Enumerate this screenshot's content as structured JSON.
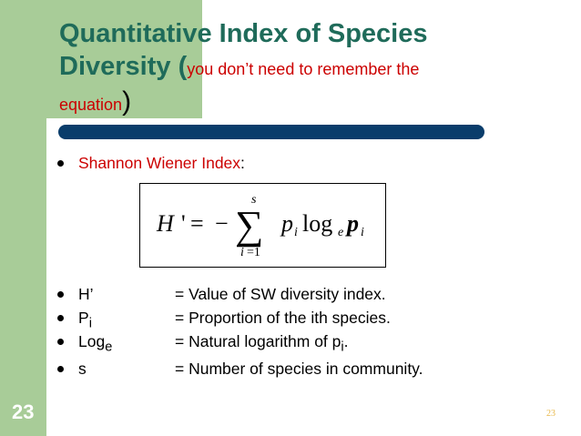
{
  "title": {
    "line1": "Quantitative Index of Species",
    "line2_main": "Diversity (",
    "line2_sub": "you don’t need to remember the",
    "line3_sub": "equation",
    "line3_close": ")"
  },
  "index_name": {
    "label": "Shannon Wiener Index",
    "colon": ":"
  },
  "equation": {
    "lhs": "H",
    "prime": "'",
    "equals": "=",
    "minus": "−",
    "sigma": "∑",
    "upper_limit": "s",
    "lower_limit": "i",
    "lower_eq": "=1",
    "p1": "p",
    "i1": "i",
    "log": "log",
    "base": "e",
    "p2": "p",
    "i2": "i"
  },
  "definitions": [
    {
      "term": "H’",
      "sub": "",
      "meaning": "= Value of SW diversity index."
    },
    {
      "term": "P",
      "sub": "i",
      "meaning": "= Proportion of the ith species."
    },
    {
      "term": "Log",
      "sub": "e",
      "meaning_pre": "= Natural logarithm of p",
      "meaning_sub": "i",
      "meaning_post": "."
    },
    {
      "term": "s",
      "sub": "",
      "meaning": "= Number of species in community."
    }
  ],
  "slide_number": "23",
  "slide_number_small": "23",
  "colors": {
    "accent_green": "#a8cc98",
    "title_teal": "#1f6b5a",
    "bar_navy": "#0a3d6b",
    "red": "#cc0000",
    "page_num_gold": "#e8b84a"
  }
}
